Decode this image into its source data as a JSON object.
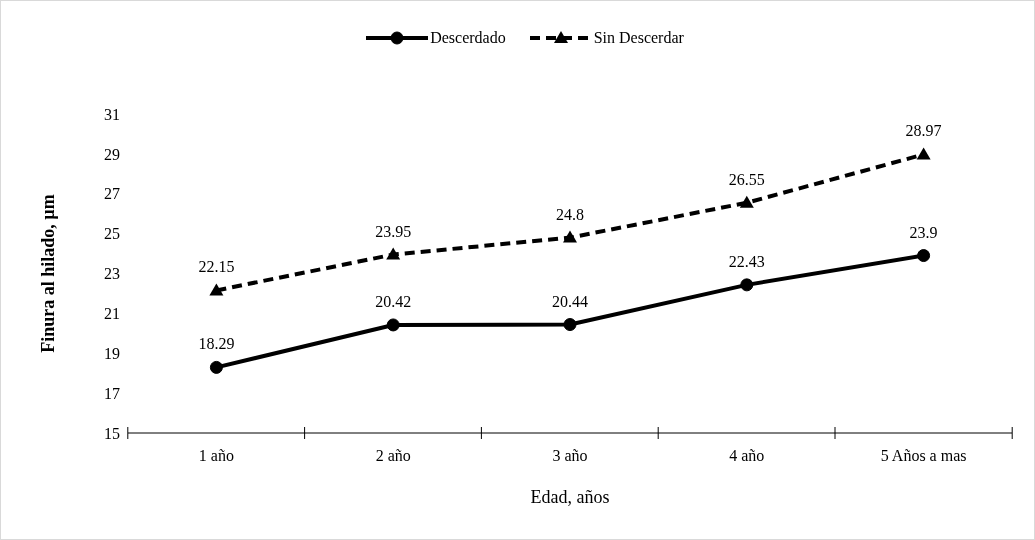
{
  "chart_data": {
    "type": "line",
    "xlabel": "Edad, años",
    "ylabel": "Finura al hilado,  µm",
    "categories": [
      "1 año",
      "2 año",
      "3 año",
      "4 año",
      "5 Años a mas"
    ],
    "series": [
      {
        "name": "Descerdado",
        "color": "#000000",
        "values": [
          18.29,
          20.42,
          20.44,
          22.43,
          23.9
        ],
        "marker": "circle",
        "line_style": "solid"
      },
      {
        "name": "Sin Descerdar",
        "color": "#000000",
        "values": [
          22.15,
          23.95,
          24.8,
          26.55,
          28.97
        ],
        "marker": "triangle",
        "line_style": "dashed"
      }
    ],
    "ylim": [
      15,
      31
    ],
    "yticks": [
      15,
      17,
      19,
      21,
      23,
      25,
      27,
      29,
      31
    ],
    "grid": false,
    "legend": "top",
    "data_labels": true
  }
}
